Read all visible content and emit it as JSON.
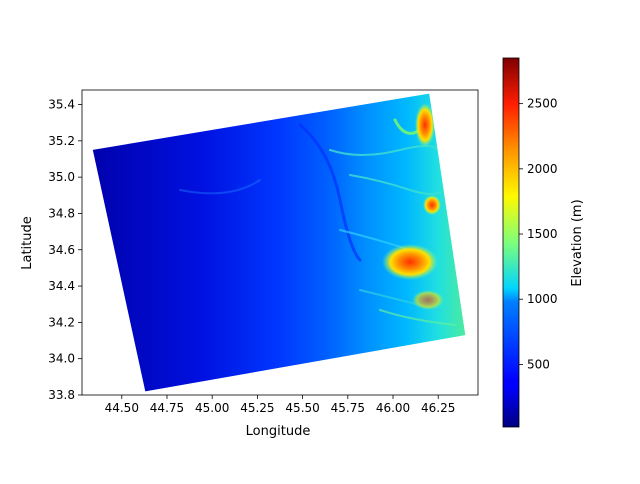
{
  "chart_data": {
    "type": "heatmap",
    "title": "",
    "xlabel": "Longitude",
    "ylabel": "Latitude",
    "xlim": [
      44.28,
      46.47
    ],
    "ylim": [
      33.8,
      35.48
    ],
    "xticks": [
      "44.50",
      "44.75",
      "45.00",
      "45.25",
      "45.50",
      "45.75",
      "46.00",
      "46.25"
    ],
    "xtick_values": [
      44.5,
      44.75,
      45.0,
      45.25,
      45.5,
      45.75,
      46.0,
      46.25
    ],
    "yticks": [
      "33.8",
      "34.0",
      "34.2",
      "34.4",
      "34.6",
      "34.8",
      "35.0",
      "35.2",
      "35.4"
    ],
    "ytick_values": [
      33.8,
      34.0,
      34.2,
      34.4,
      34.6,
      34.8,
      35.0,
      35.2,
      35.4
    ],
    "grid": false,
    "colormap": "jet",
    "colorbar": {
      "label": "Elevation (m)",
      "range": [
        20,
        2850
      ],
      "ticks": [
        "500",
        "1000",
        "1500",
        "2000",
        "2500"
      ],
      "tick_values": [
        500,
        1000,
        1500,
        2000,
        2500
      ]
    },
    "data_extent_corners": {
      "top_left": [
        44.34,
        35.15
      ],
      "top_right": [
        46.2,
        35.46
      ],
      "bottom_right": [
        46.4,
        34.13
      ],
      "bottom_left": [
        44.63,
        33.82
      ]
    },
    "elevation_summary": {
      "west_lowlands_m": 100,
      "central_plain_m": 400,
      "eastern_foothills_m": 1100,
      "peak_east_m": 2700,
      "high_area_around": [
        46.05,
        34.55
      ],
      "high_area_elevation_m": 2200
    }
  }
}
